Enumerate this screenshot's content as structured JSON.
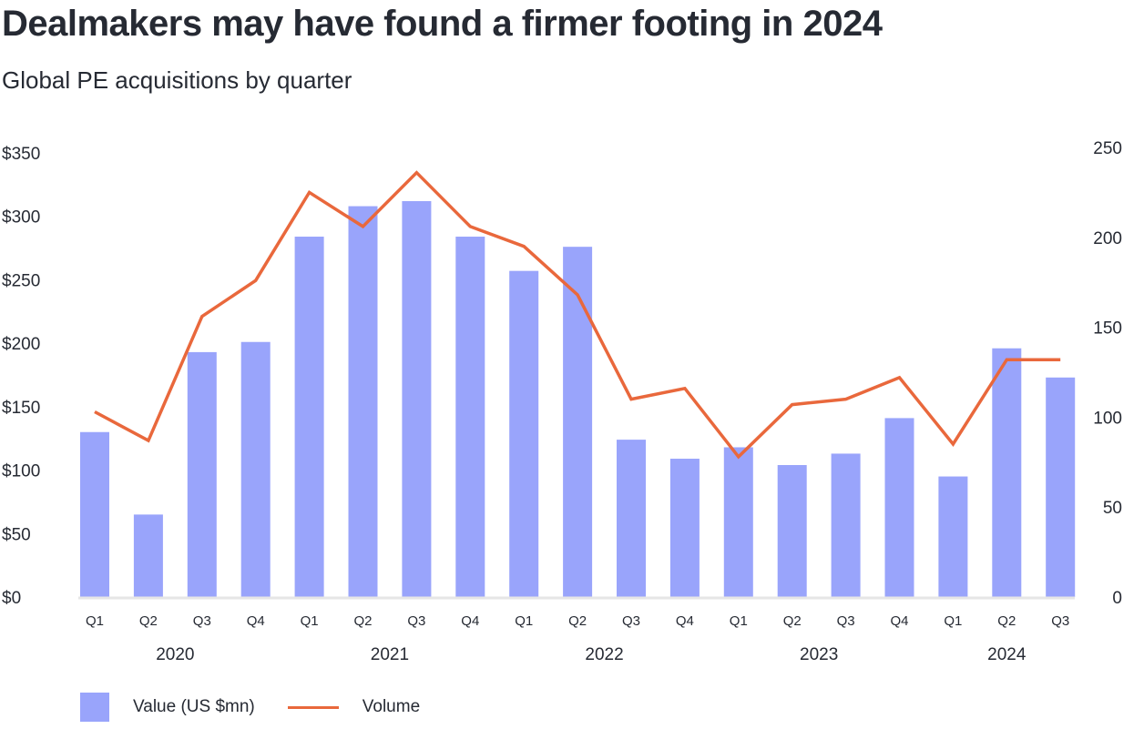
{
  "header": {
    "title": "Dealmakers may have found a firmer footing in 2024",
    "subtitle": "Global PE acquisitions by quarter"
  },
  "colors": {
    "bar": "#99a4fb",
    "line": "#e9683c",
    "text": "#262a33",
    "baseline": "#e6e6e6"
  },
  "legend": {
    "value_label": "Value (US $mn)",
    "volume_label": "Volume"
  },
  "chart_data": {
    "type": "bar+line",
    "categories": [
      "Q1",
      "Q2",
      "Q3",
      "Q4",
      "Q1",
      "Q2",
      "Q3",
      "Q4",
      "Q1",
      "Q2",
      "Q3",
      "Q4",
      "Q1",
      "Q2",
      "Q3",
      "Q4",
      "Q1",
      "Q2",
      "Q3"
    ],
    "years": [
      {
        "label": "2020",
        "start": 0,
        "end": 3
      },
      {
        "label": "2021",
        "start": 4,
        "end": 7
      },
      {
        "label": "2022",
        "start": 8,
        "end": 11
      },
      {
        "label": "2023",
        "start": 12,
        "end": 15
      },
      {
        "label": "2024",
        "start": 16,
        "end": 18
      }
    ],
    "series": [
      {
        "name": "Value (US $mn)",
        "type": "bar",
        "axis": "left",
        "values": [
          130,
          65,
          193,
          201,
          284,
          308,
          312,
          284,
          257,
          276,
          124,
          109,
          118,
          104,
          113,
          141,
          95,
          196,
          173
        ]
      },
      {
        "name": "Volume",
        "type": "line",
        "axis": "right",
        "values": [
          103,
          87,
          156,
          176,
          225,
          206,
          236,
          206,
          195,
          168,
          110,
          116,
          78,
          107,
          110,
          122,
          85,
          132,
          132
        ]
      }
    ],
    "left_axis": {
      "ticks": [
        0,
        50,
        100,
        150,
        200,
        250,
        300,
        350
      ],
      "tick_labels": [
        "$0",
        "$50",
        "$100",
        "$150",
        "$200",
        "$250",
        "$300",
        "$350"
      ],
      "range": [
        0,
        350
      ]
    },
    "right_axis": {
      "ticks": [
        0,
        50,
        100,
        150,
        200,
        250
      ],
      "tick_labels": [
        "0",
        "50",
        "100",
        "150",
        "200",
        "250"
      ],
      "range": [
        0,
        250
      ]
    },
    "grid": false,
    "legend_position": "bottom-left"
  }
}
